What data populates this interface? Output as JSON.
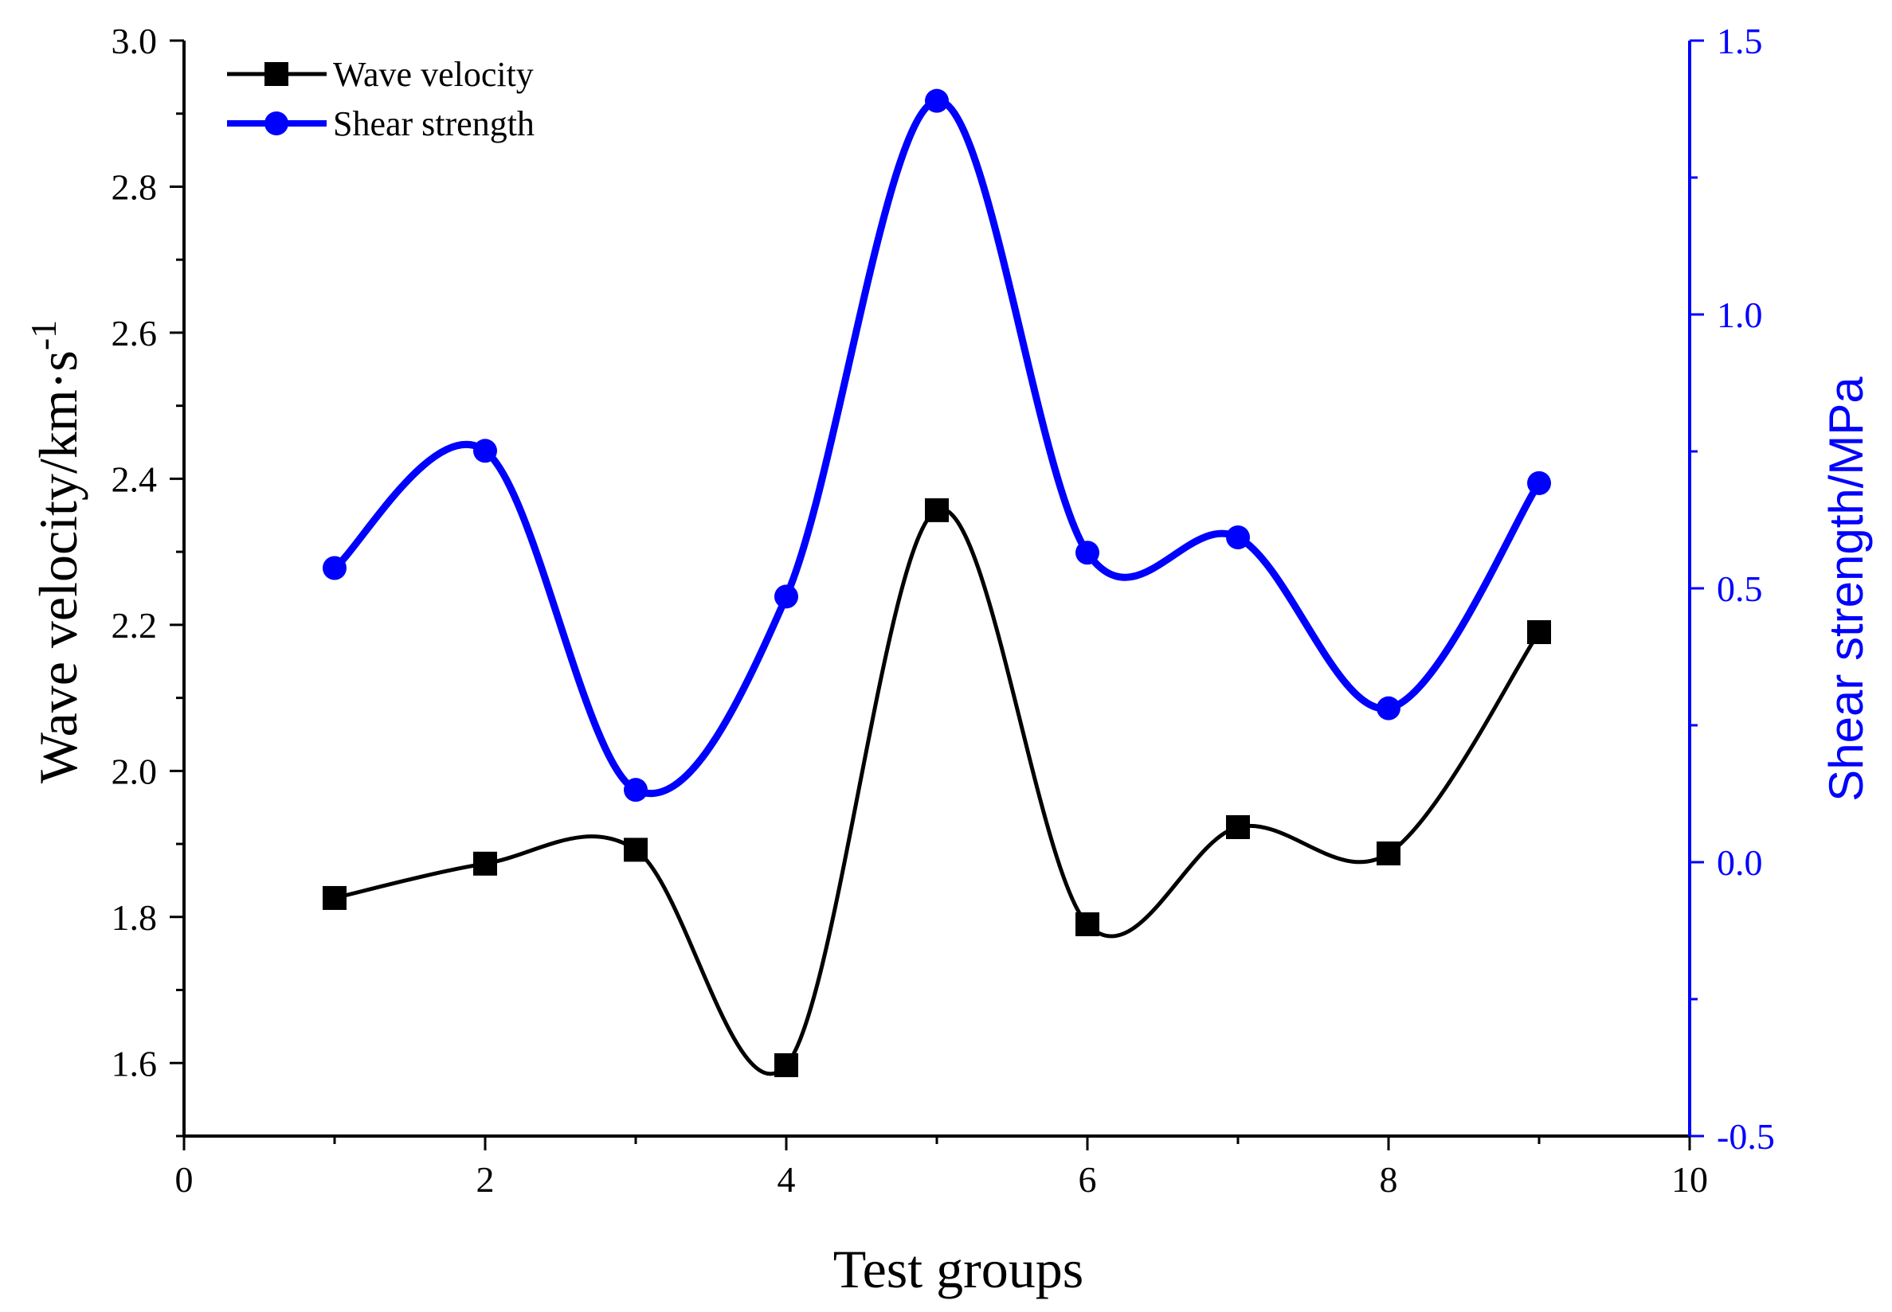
{
  "chart_data": {
    "type": "line",
    "xlabel": "Test groups",
    "ylabel": "Wave velocity/km·s",
    "ylabel_superscript": "-1",
    "y2label": "Shear strength/MPa",
    "xlim": [
      0,
      10
    ],
    "ylim": [
      1.5,
      3.0
    ],
    "y2lim": [
      -0.5,
      1.5
    ],
    "xticks": [
      "0",
      "2",
      "4",
      "6",
      "8",
      "10"
    ],
    "yticks": [
      "1.6",
      "1.8",
      "2.0",
      "2.2",
      "2.4",
      "2.6",
      "2.8",
      "3.0"
    ],
    "y2ticks": [
      "-0.5",
      "0.0",
      "0.5",
      "1.0",
      "1.5"
    ],
    "legend_position": "top-left",
    "grid": false,
    "series": [
      {
        "name": "Wave velocity",
        "axis": "left",
        "marker": "square",
        "color": "#000000",
        "x": [
          1,
          2,
          3,
          4,
          5,
          6,
          7,
          8,
          9
        ],
        "y": [
          1.826,
          1.873,
          1.892,
          1.597,
          2.357,
          1.79,
          1.923,
          1.887,
          2.19
        ]
      },
      {
        "name": "Shear strength",
        "axis": "right",
        "marker": "circle",
        "color": "#0000ff",
        "x": [
          1,
          2,
          3,
          4,
          5,
          6,
          7,
          8,
          9
        ],
        "y": [
          0.537,
          0.751,
          0.132,
          0.485,
          1.39,
          0.565,
          0.593,
          0.281,
          0.692
        ]
      }
    ]
  }
}
